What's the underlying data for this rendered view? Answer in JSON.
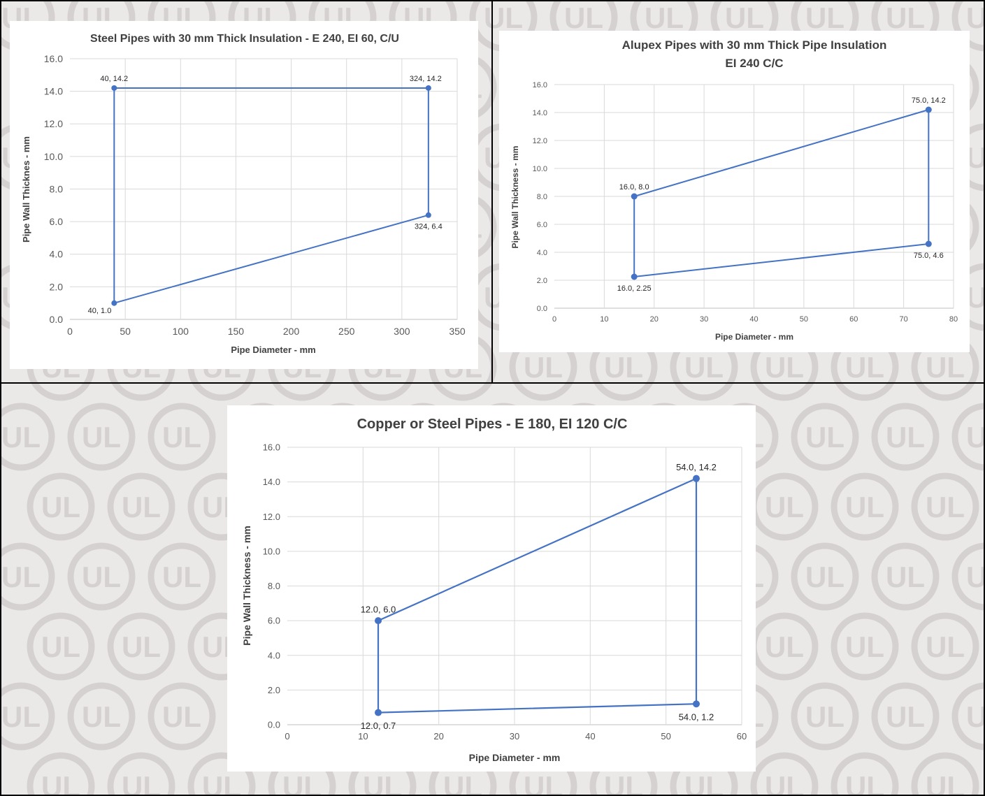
{
  "chart_data": [
    {
      "type": "line",
      "title": "Steel Pipes with 30 mm Thick Insulation - E 240, EI 60, C/U",
      "subtitle": "",
      "xlabel": "Pipe Diameter - mm",
      "ylabel": "Pipe Wall Thicknes - mm",
      "xlim": [
        0,
        350
      ],
      "ylim": [
        0,
        16
      ],
      "xticks": [
        "0",
        "50",
        "100",
        "150",
        "200",
        "250",
        "300",
        "350"
      ],
      "yticks": [
        "0.0",
        "2.0",
        "4.0",
        "6.0",
        "8.0",
        "10.0",
        "12.0",
        "14.0",
        "16.0"
      ],
      "grid": true,
      "closed": true,
      "line_color": "#4472c4",
      "points": [
        {
          "x": 40,
          "y": 1.0,
          "label": "40, 1.0",
          "pos": "below-left"
        },
        {
          "x": 324,
          "y": 6.4,
          "label": "324, 6.4",
          "pos": "below"
        },
        {
          "x": 324,
          "y": 14.2,
          "label": "324, 14.2",
          "pos": "above-left"
        },
        {
          "x": 40,
          "y": 14.2,
          "label": "40, 14.2",
          "pos": "above"
        }
      ]
    },
    {
      "type": "line",
      "title": "Alupex Pipes with 30 mm Thick Pipe Insulation",
      "subtitle": "EI 240 C/C",
      "xlabel": "Pipe Diameter - mm",
      "ylabel": "Pipe Wall Thickness - mm",
      "xlim": [
        0,
        80
      ],
      "ylim": [
        0,
        16
      ],
      "xticks": [
        "0",
        "10",
        "20",
        "30",
        "40",
        "50",
        "60",
        "70",
        "80"
      ],
      "yticks": [
        "0.0",
        "2.0",
        "4.0",
        "6.0",
        "8.0",
        "10.0",
        "12.0",
        "14.0",
        "16.0"
      ],
      "grid": true,
      "closed": true,
      "line_color": "#4472c4",
      "points": [
        {
          "x": 16.0,
          "y": 2.25,
          "label": "16.0, 2.25",
          "pos": "below"
        },
        {
          "x": 75.0,
          "y": 4.6,
          "label": "75.0, 4.6",
          "pos": "below"
        },
        {
          "x": 75.0,
          "y": 14.2,
          "label": "75.0, 14.2",
          "pos": "above"
        },
        {
          "x": 16.0,
          "y": 8.0,
          "label": "16.0, 8.0",
          "pos": "above"
        }
      ]
    },
    {
      "type": "line",
      "title": "Copper or Steel Pipes - E 180, EI 120 C/C",
      "subtitle": "",
      "xlabel": "Pipe Diameter - mm",
      "ylabel": "Pipe Wall Thickness - mm",
      "xlim": [
        0,
        60
      ],
      "ylim": [
        0,
        16
      ],
      "xticks": [
        "0",
        "10",
        "20",
        "30",
        "40",
        "50",
        "60"
      ],
      "yticks": [
        "0.0",
        "2.0",
        "4.0",
        "6.0",
        "8.0",
        "10.0",
        "12.0",
        "14.0",
        "16.0"
      ],
      "grid": true,
      "closed": true,
      "line_color": "#4472c4",
      "points": [
        {
          "x": 12.0,
          "y": 0.7,
          "label": "12.0, 0.7",
          "pos": "below"
        },
        {
          "x": 54.0,
          "y": 1.2,
          "label": "54.0, 1.2",
          "pos": "below"
        },
        {
          "x": 54.0,
          "y": 14.2,
          "label": "54.0, 14.2",
          "pos": "above"
        },
        {
          "x": 12.0,
          "y": 6.0,
          "label": "12.0, 6.0",
          "pos": "above"
        }
      ]
    }
  ],
  "watermark": {
    "text": "UL",
    "color": "#d6d1d1"
  }
}
